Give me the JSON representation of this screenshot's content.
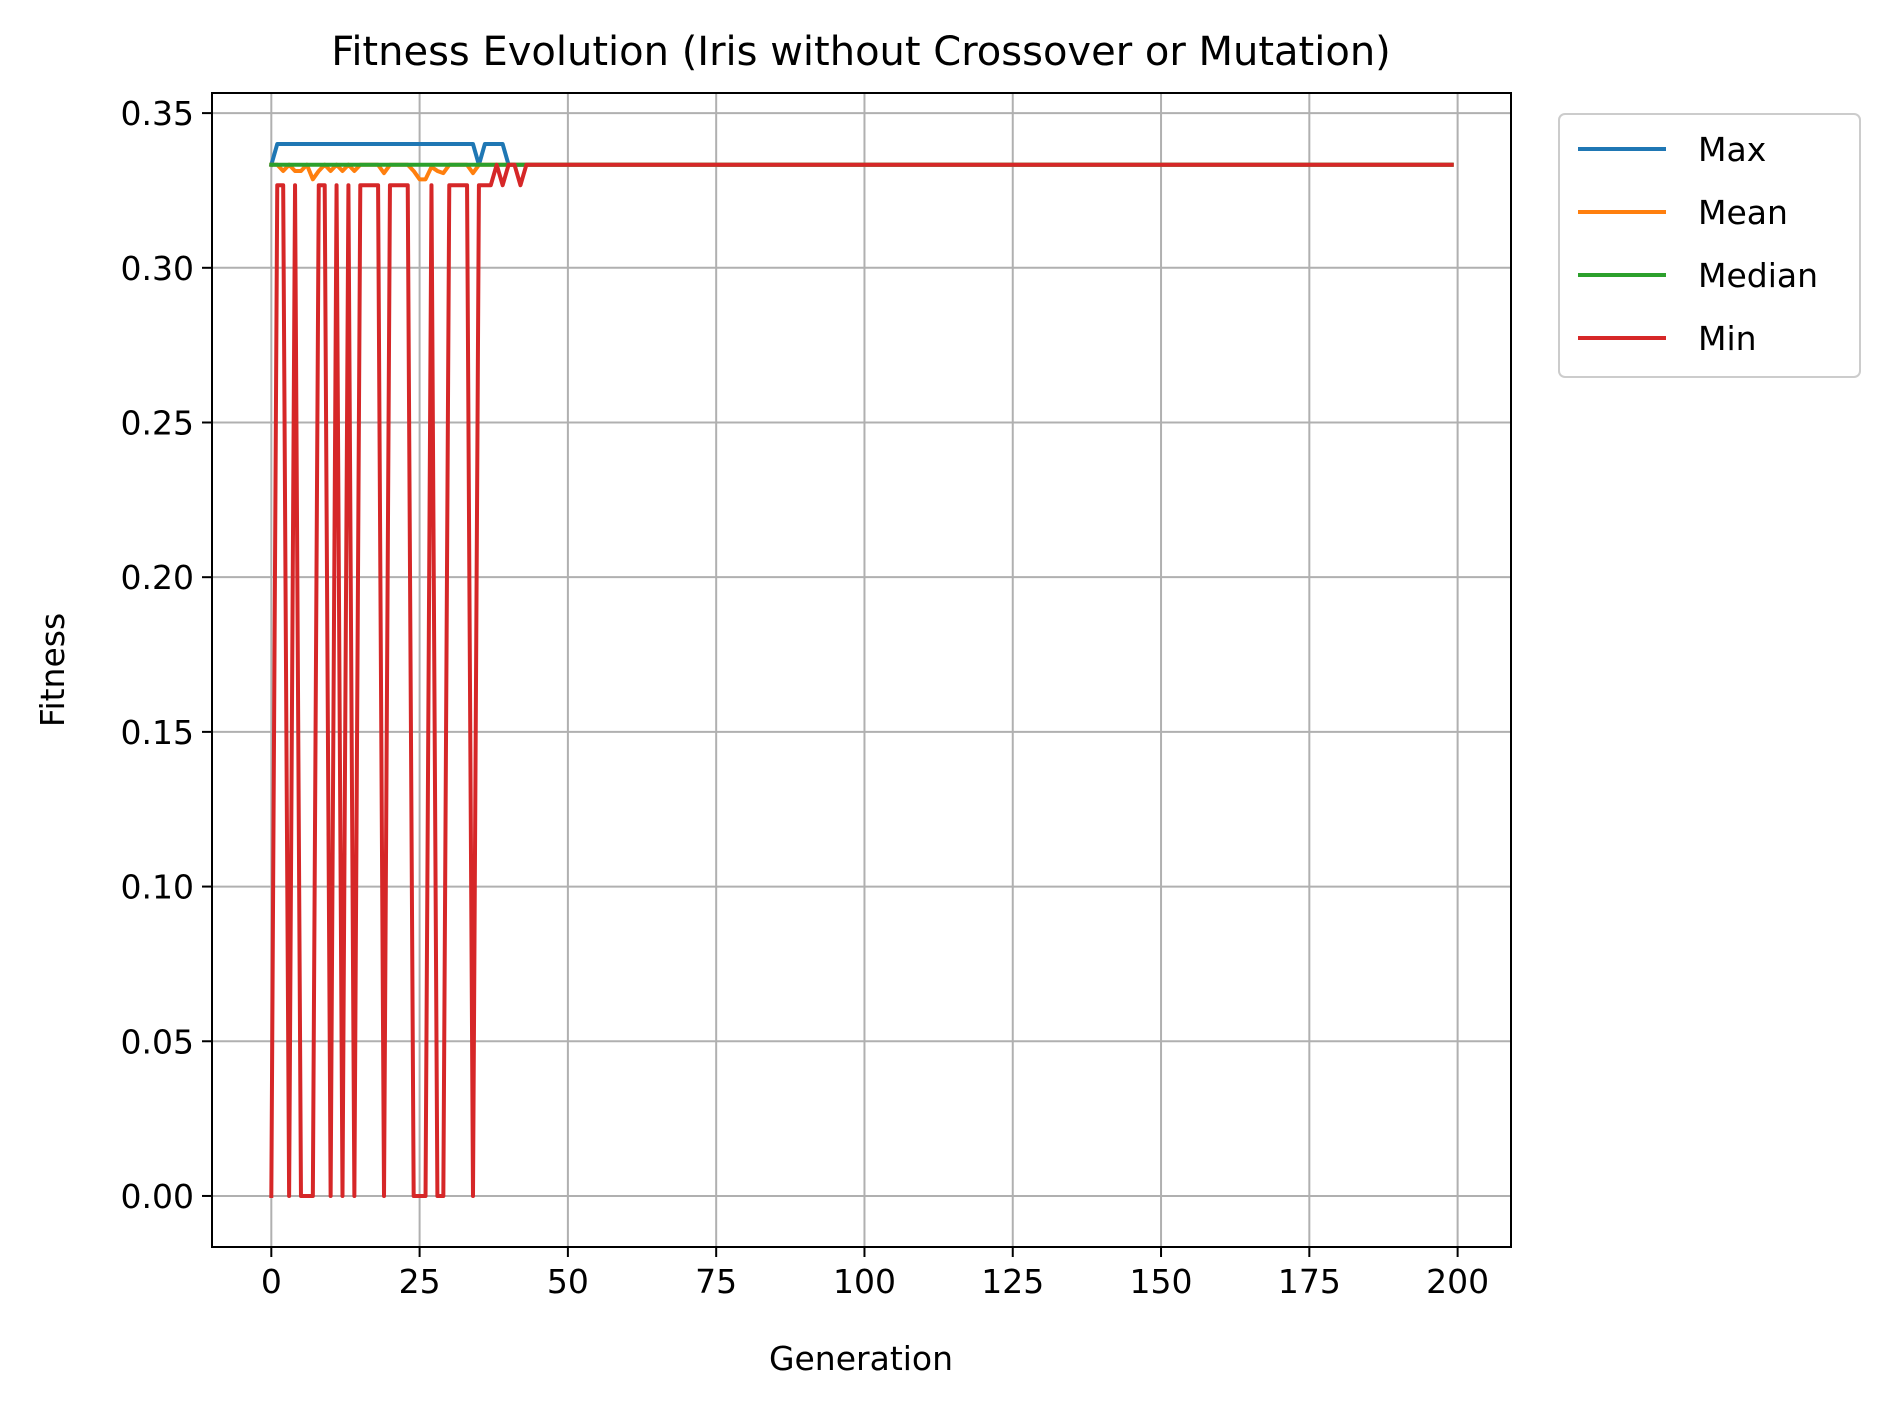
{
  "chart_data": {
    "type": "line",
    "title": "Fitness Evolution (Iris without Crossover or Mutation)",
    "xlabel": "Generation",
    "ylabel": "Fitness",
    "xlim": [
      -10,
      209
    ],
    "ylim": [
      -0.0165,
      0.3565
    ],
    "xticks": [
      0,
      25,
      50,
      75,
      100,
      125,
      150,
      175,
      200
    ],
    "xtick_labels": [
      "0",
      "25",
      "50",
      "75",
      "100",
      "125",
      "150",
      "175",
      "200"
    ],
    "yticks": [
      0.0,
      0.05,
      0.1,
      0.15,
      0.2,
      0.25,
      0.3,
      0.35
    ],
    "ytick_labels": [
      "0.00",
      "0.05",
      "0.10",
      "0.15",
      "0.20",
      "0.25",
      "0.30",
      "0.35"
    ],
    "grid": true,
    "legend_position": "outside-top-right",
    "series": [
      {
        "name": "Max",
        "color": "#1f77b4",
        "x": [
          0,
          1,
          34,
          35,
          36,
          39,
          40,
          41,
          42,
          199
        ],
        "y": [
          0.3333,
          0.34,
          0.34,
          0.3333,
          0.34,
          0.34,
          0.3333,
          0.3333,
          0.3333,
          0.3333
        ]
      },
      {
        "name": "Mean",
        "color": "#ff7f0e",
        "x": [
          0,
          1,
          2,
          3,
          4,
          5,
          6,
          7,
          8,
          9,
          10,
          11,
          12,
          13,
          14,
          15,
          16,
          17,
          18,
          19,
          20,
          21,
          22,
          23,
          24,
          25,
          26,
          27,
          28,
          29,
          30,
          31,
          32,
          33,
          34,
          35,
          36,
          37,
          38,
          199
        ],
        "y": [
          0.3333,
          0.3333,
          0.3313,
          0.3333,
          0.3313,
          0.3313,
          0.3333,
          0.3286,
          0.3313,
          0.3333,
          0.3313,
          0.3333,
          0.3313,
          0.3333,
          0.3313,
          0.3333,
          0.3333,
          0.3333,
          0.3333,
          0.3306,
          0.3333,
          0.3333,
          0.3333,
          0.3333,
          0.3313,
          0.3286,
          0.3286,
          0.3326,
          0.3313,
          0.3306,
          0.3333,
          0.3333,
          0.3333,
          0.3333,
          0.3306,
          0.3333,
          0.3333,
          0.3333,
          0.3333,
          0.3333
        ]
      },
      {
        "name": "Median",
        "color": "#2ca02c",
        "x": [
          0,
          1,
          199
        ],
        "y": [
          0.3333,
          0.3333,
          0.3333
        ]
      },
      {
        "name": "Min",
        "color": "#d62728",
        "x": [
          0,
          1,
          2,
          3,
          4,
          5,
          6,
          7,
          8,
          9,
          10,
          11,
          12,
          13,
          14,
          15,
          16,
          17,
          18,
          19,
          20,
          21,
          22,
          23,
          24,
          25,
          26,
          27,
          28,
          29,
          30,
          31,
          32,
          33,
          34,
          35,
          36,
          37,
          38,
          39,
          40,
          41,
          42,
          43,
          44,
          199
        ],
        "y": [
          0.0,
          0.3267,
          0.3267,
          0.0,
          0.3267,
          0.0,
          0.0,
          0.0,
          0.3267,
          0.3267,
          0.0,
          0.3267,
          0.0,
          0.3267,
          0.0,
          0.3267,
          0.3267,
          0.3267,
          0.3267,
          0.0,
          0.3267,
          0.3267,
          0.3267,
          0.3267,
          0.0,
          0.0,
          0.0,
          0.3267,
          0.0,
          0.0,
          0.3267,
          0.3267,
          0.3267,
          0.3267,
          0.0,
          0.3267,
          0.3267,
          0.3267,
          0.3333,
          0.3267,
          0.3333,
          0.3333,
          0.3267,
          0.3333,
          0.3333,
          0.3333
        ]
      }
    ]
  }
}
